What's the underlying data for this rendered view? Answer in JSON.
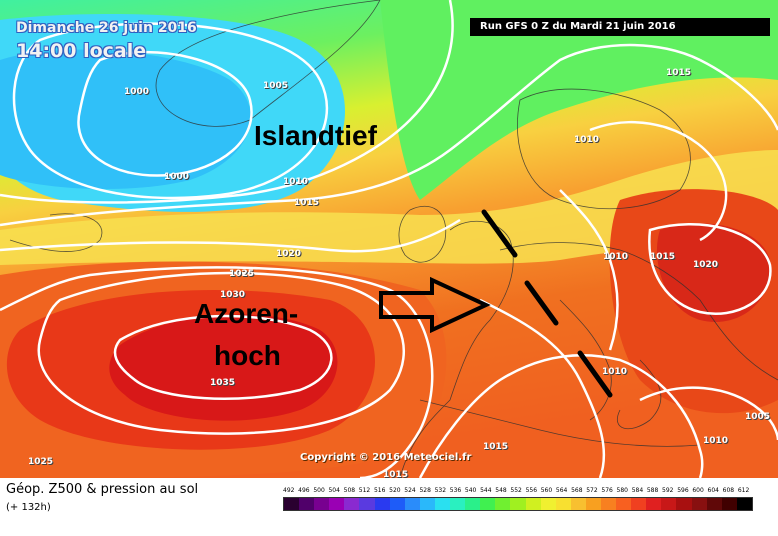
{
  "header": {
    "date": "Dimanche 26 juin 2016",
    "time": "14:00 locale",
    "run": "Run GFS 0 Z du Mardi 21 juin 2016"
  },
  "annotations": {
    "islandtief": "Islandtief",
    "azoren_line1": "Azoren-",
    "azoren_line2": "hoch"
  },
  "isobars": [
    "1000",
    "1005",
    "1000",
    "1010",
    "1015",
    "1020",
    "1025",
    "1030",
    "1035",
    "1025",
    "1015",
    "1010",
    "1010",
    "1015",
    "1020",
    "1010",
    "1015",
    "1005",
    "1010",
    "1015"
  ],
  "copyright": "Copyright © 2016 Meteociel.fr",
  "legend": {
    "title": "Géop. Z500 & pression au sol",
    "subtitle": "(+ 132h)",
    "scale_values": [
      "492",
      "496",
      "500",
      "504",
      "508",
      "512",
      "516",
      "520",
      "524",
      "528",
      "532",
      "536",
      "540",
      "544",
      "548",
      "552",
      "556",
      "560",
      "564",
      "568",
      "572",
      "576",
      "580",
      "584",
      "588",
      "592",
      "596",
      "600",
      "604",
      "608",
      "612"
    ],
    "scale_colors": [
      "#2a0030",
      "#50006a",
      "#780090",
      "#9a00b4",
      "#8a2ad0",
      "#5a3ae0",
      "#2a3af0",
      "#1e5cf8",
      "#2a8cfa",
      "#2ab8fa",
      "#2ae0f0",
      "#2af0c0",
      "#2af08a",
      "#40f050",
      "#70f030",
      "#a0f020",
      "#d0f020",
      "#f0f030",
      "#f8e030",
      "#f8c030",
      "#f8a020",
      "#f88020",
      "#f86020",
      "#f04020",
      "#e02020",
      "#c81818",
      "#a81010",
      "#881010",
      "#600808",
      "#400000",
      "#000000"
    ]
  }
}
